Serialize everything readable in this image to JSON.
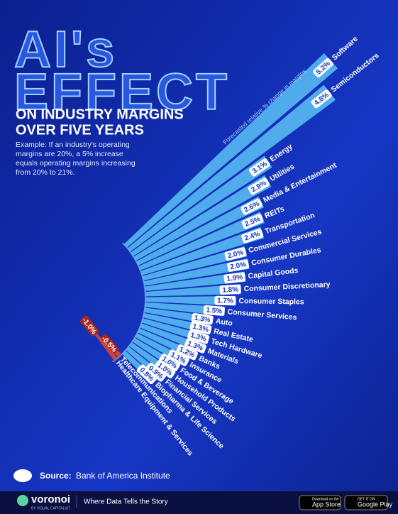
{
  "chart_data": {
    "type": "radial_bar",
    "title": [
      "AI's",
      "EFFECT"
    ],
    "subtitle": [
      "ON INDUSTRY MARGINS",
      "OVER FIVE YEARS"
    ],
    "description": "Example: If an industry's operating margins are 20%, a 5% increase equals operating margins increasing from 20% to 21%.",
    "axis_label": "Forecasted relative % change in margins",
    "categories": [
      "Software",
      "Semiconductors",
      "Energy",
      "Utilities",
      "Media & Entertainment",
      "REITs",
      "Transportation",
      "Commercial Services",
      "Consumer Durables",
      "Capital Goods",
      "Consumer Discretionary",
      "Consumer Staples",
      "Consumer Services",
      "Auto",
      "Real Estate",
      "Tech Hardware",
      "Materials",
      "Banks",
      "Insurance",
      "Food & Beverage",
      "Household Products",
      "Financial Services",
      "Biopharma & Life Science",
      "Telecommunications",
      "Healthcare Equipment & Services"
    ],
    "values": [
      5.2,
      4.8,
      3.1,
      2.9,
      2.6,
      2.5,
      2.4,
      2.0,
      2.0,
      1.9,
      1.8,
      1.7,
      1.5,
      1.3,
      1.3,
      1.3,
      1.3,
      1.2,
      1.1,
      1.0,
      1.0,
      0.9,
      0.8,
      -0.5,
      -1.0
    ],
    "value_labels": [
      "5.2%",
      "4.8%",
      "3.1%",
      "2.9%",
      "2.6%",
      "2.5%",
      "2.4%",
      "2.0%",
      "2.0%",
      "1.9%",
      "1.8%",
      "1.7%",
      "1.5%",
      "1.3%",
      "1.3%",
      "1.3%",
      "1.3%",
      "1.2%",
      "1.1%",
      "1.0%",
      "1.0%",
      "0.9%",
      "0.8%",
      "-0.5%",
      "-1.0%"
    ],
    "color": "#58b9f2",
    "negative_color": "#d8453b",
    "source_label": "Source:",
    "source": "Bank of America Institute"
  },
  "footer": {
    "brand": "voronoi",
    "brand_sub": "BY VISUAL CAPITALIST",
    "tagline": "Where Data Tells the Story",
    "app_store": [
      "Download on the",
      "App Store"
    ],
    "google_play": [
      "GET IT ON",
      "Google Play"
    ]
  }
}
